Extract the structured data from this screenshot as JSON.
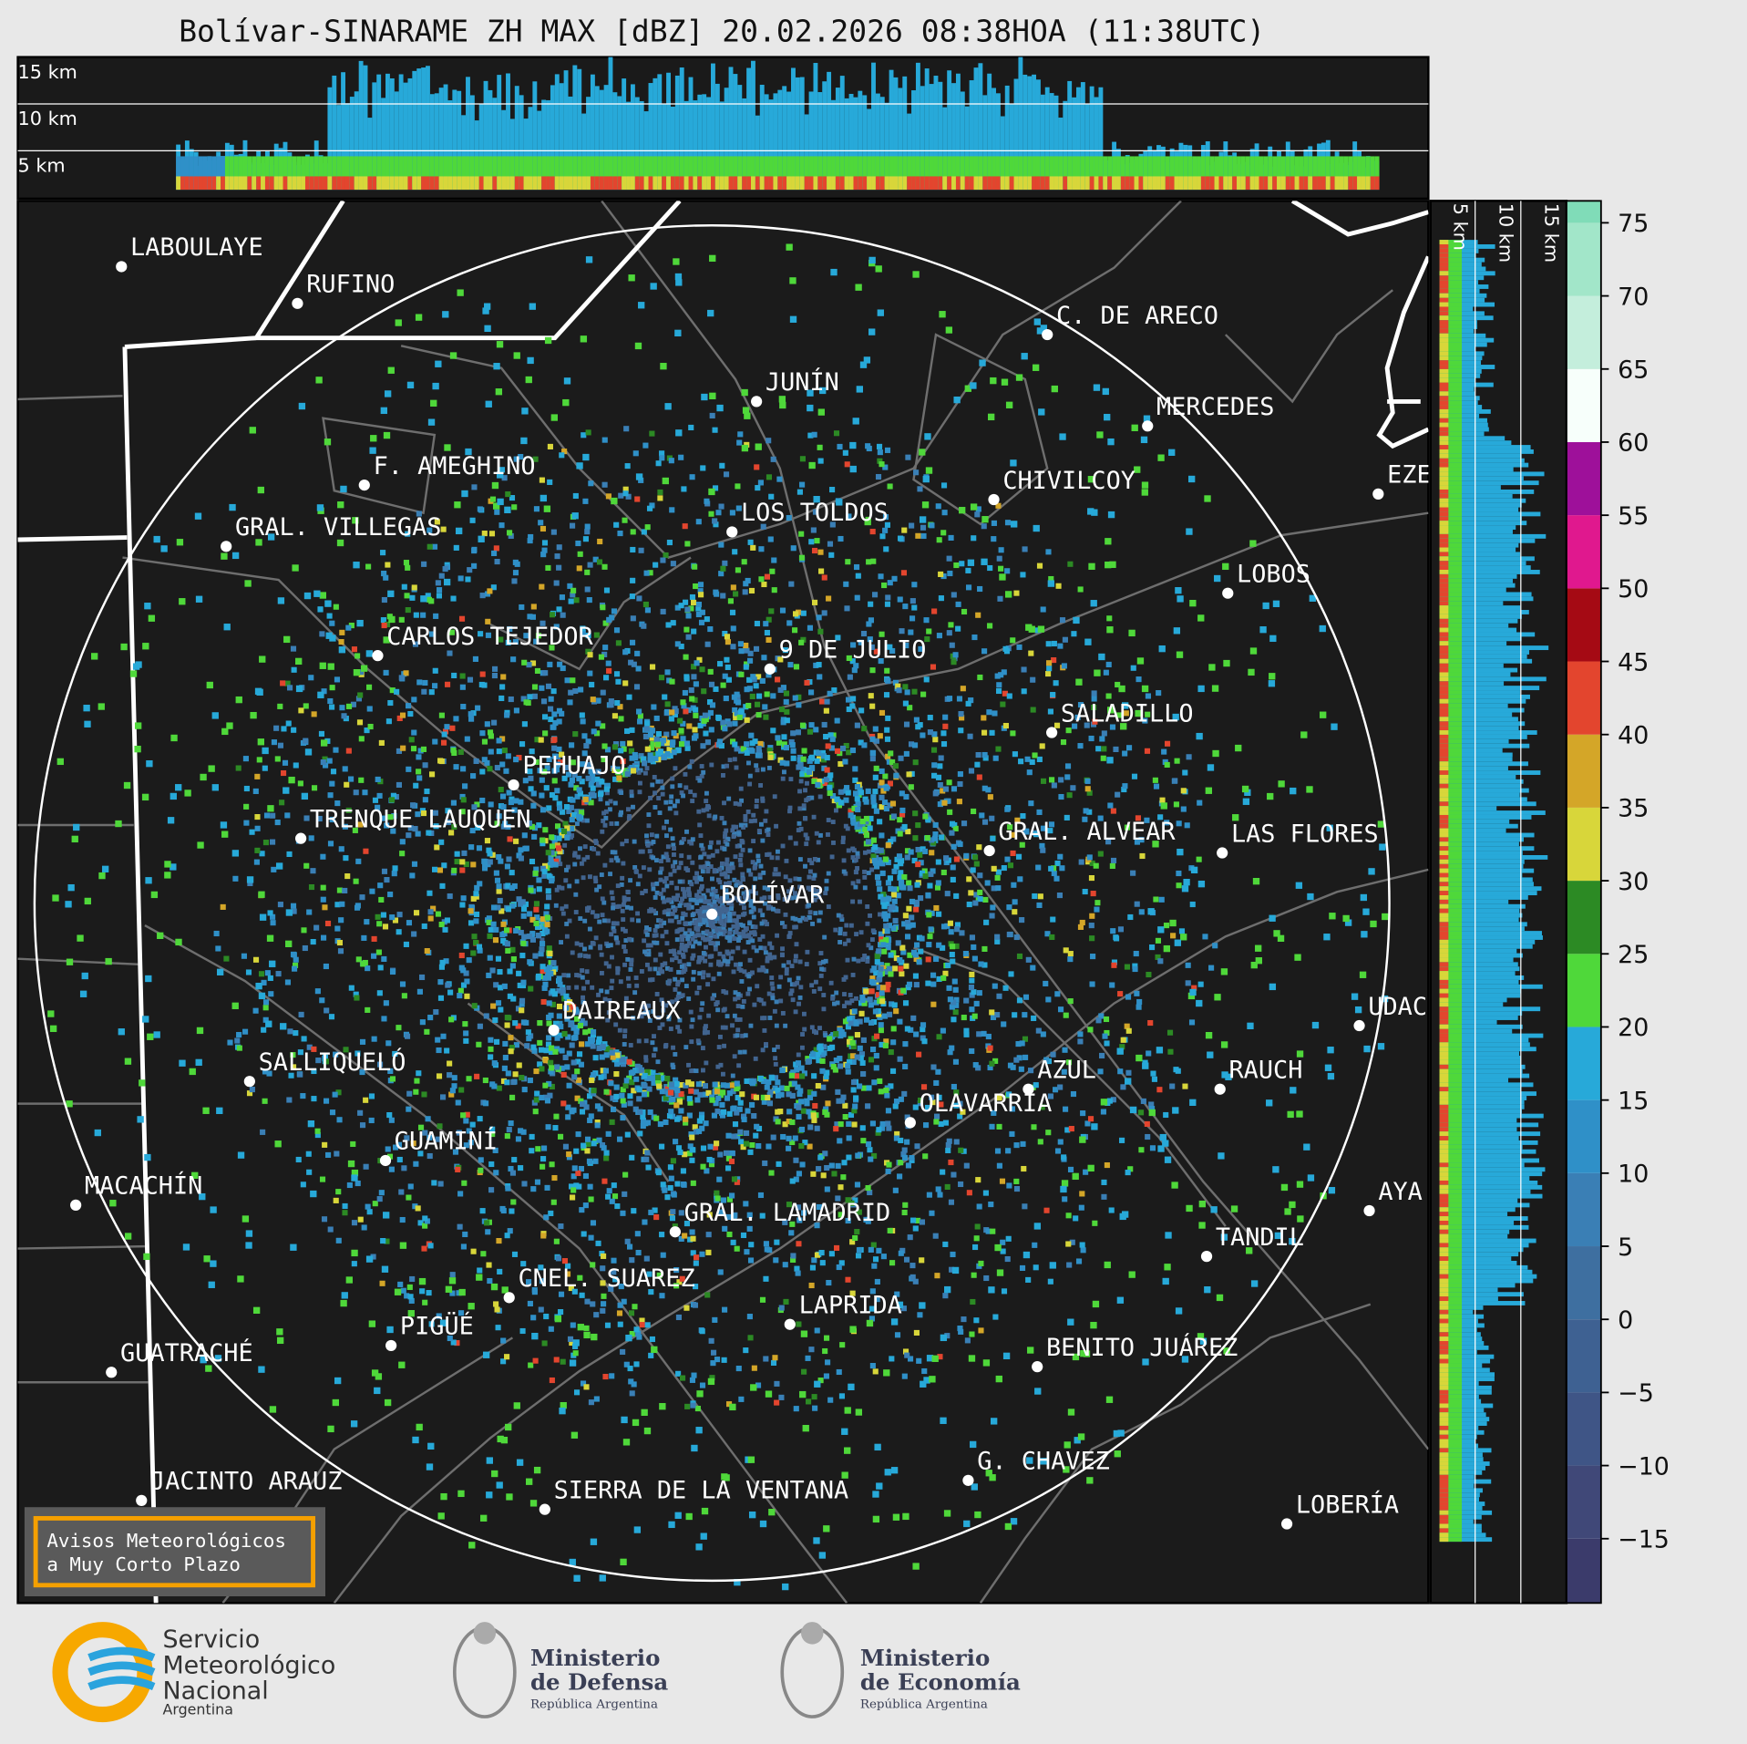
{
  "title": "Bolívar-SINARAME ZH MAX [dBZ] 20.02.2026 08:38HOA (11:38UTC)",
  "top_panel": {
    "labels": [
      "15 km",
      "10 km",
      "5 km"
    ]
  },
  "side_panel": {
    "labels": [
      "5 km",
      "10 km",
      "15 km"
    ]
  },
  "cities": [
    "LABOULAYE",
    "RUFINO",
    "C. DE ARECO",
    "JUNÍN",
    "MERCEDES",
    "F. AMEGHINO",
    "CHIVILCOY",
    "EZE",
    "GRAL. VILLEGAS",
    "LOS TOLDOS",
    "LOBOS",
    "CARLOS TEJEDOR",
    "9 DE JULIO",
    "SALADILLO",
    "PEHUAJO",
    "TRENQUE LAUQUEN",
    "GRAL. ALVEAR",
    "LAS FLORES",
    "BOLÍVAR",
    "DAIREAUX",
    "UDAC",
    "SALLIQUELÓ",
    "AZUL",
    "RAUCH",
    "OLAVARRÍA",
    "GUAMINÍ",
    "MACACHÍN",
    "AYA",
    "GRAL. LAMADRID",
    "TANDIL",
    "CNEL. SUAREZ",
    "LAPRIDA",
    "PIGÜÉ",
    "GUATRACHÉ",
    "BENITO JUÁREZ",
    "G. CHAVEZ",
    "JACINTO ARAUZ",
    "SIERRA DE LA VENTANA",
    "LOBERÍA"
  ],
  "colorbar": {
    "lim": [
      -19.4,
      76.5
    ],
    "ticks": [
      75,
      70,
      65,
      60,
      55,
      50,
      45,
      40,
      35,
      30,
      25,
      20,
      15,
      10,
      5,
      0,
      {
        "value": -5,
        "label": "−5"
      },
      {
        "value": -10,
        "label": "−10"
      },
      {
        "value": -15,
        "label": "−15"
      }
    ],
    "bins": [
      -20,
      -15,
      -10,
      -5,
      0,
      5,
      10,
      15,
      20,
      25,
      30,
      35,
      40,
      45,
      50,
      55,
      60,
      65,
      70,
      75,
      80
    ],
    "colors": [
      "#3b3b6b",
      "#404878",
      "#3f5586",
      "#3e6192",
      "#3e6fa0",
      "#3a7fb5",
      "#2f90c8",
      "#27a9d9",
      "#4fd83a",
      "#2c8a24",
      "#d8d63a",
      "#d4a628",
      "#e3452e",
      "#a50a14",
      "#e0188e",
      "#9e109a",
      "#f7fffb",
      "#c4eedc",
      "#a2e6c9",
      "#80dcb8"
    ]
  },
  "warning": {
    "lines": [
      "Avisos Meteorológicos",
      "a Muy Corto Plazo"
    ]
  },
  "footer": {
    "smn": [
      "Servicio",
      "Meteorológico",
      "Nacional",
      "Argentina"
    ],
    "defensa": [
      "Ministerio",
      "de Defensa",
      "República Argentina"
    ],
    "economia": [
      "Ministerio",
      "de Economía",
      "República Argentina"
    ]
  }
}
